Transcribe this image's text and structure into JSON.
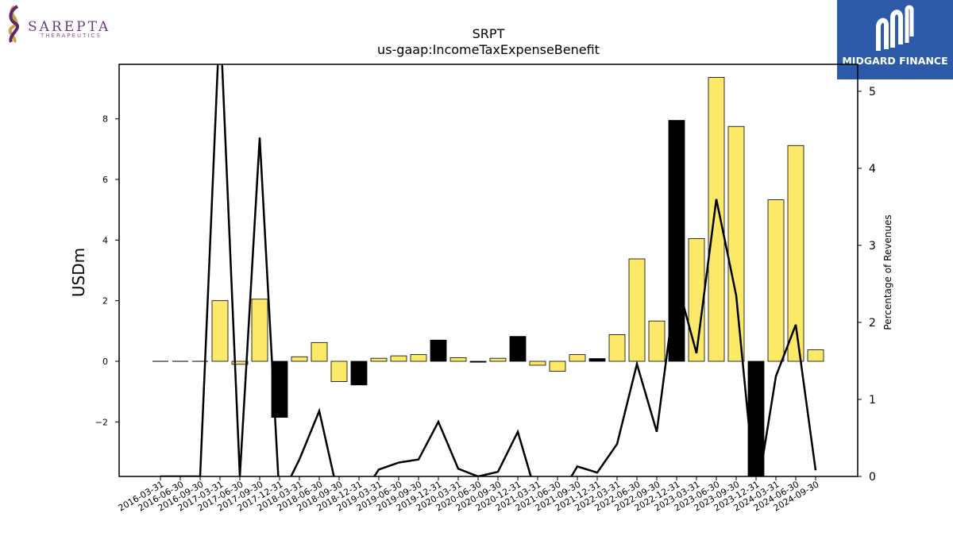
{
  "logos": {
    "left_name": "SAREPTA",
    "left_sub": "THERAPEUTICS",
    "right_name": "MIDGARD FINANCE"
  },
  "colors": {
    "positive_bar": "#fce96a",
    "negative_bar": "#000000",
    "line": "#000000",
    "mf_background": "#2d5aa8"
  },
  "chart_data": {
    "type": "bar",
    "title": "SRPT",
    "subtitle": "us-gaap:IncomeTaxExpenseBenefit",
    "ylabel": "USDm",
    "y2label": "Percentage of Revenues",
    "ylim": [
      -3.8,
      9.8
    ],
    "y2lim": [
      0,
      5.35
    ],
    "yticks": [
      -2,
      0,
      2,
      4,
      6,
      8
    ],
    "y2ticks": [
      0,
      1,
      2,
      3,
      4,
      5
    ],
    "grid": false,
    "categories": [
      "2016-03-31",
      "2016-06-30",
      "2016-09-30",
      "2017-03-31",
      "2017-06-30",
      "2017-09-30",
      "2017-12-31",
      "2018-03-31",
      "2018-06-30",
      "2018-09-30",
      "2018-12-31",
      "2019-03-31",
      "2019-06-30",
      "2019-09-30",
      "2019-12-31",
      "2020-03-31",
      "2020-06-30",
      "2020-09-30",
      "2020-12-31",
      "2021-03-31",
      "2021-06-30",
      "2021-09-30",
      "2021-12-31",
      "2022-03-31",
      "2022-06-30",
      "2022-09-30",
      "2022-12-31",
      "2023-03-31",
      "2023-06-30",
      "2023-09-30",
      "2023-12-31",
      "2024-03-31",
      "2024-06-30",
      "2024-09-30"
    ],
    "series": [
      {
        "type": "bar",
        "axis": "left",
        "values": [
          0,
          0,
          0,
          2.0,
          -0.1,
          2.05,
          -1.85,
          0.15,
          0.62,
          -0.67,
          -0.78,
          0.1,
          0.18,
          0.22,
          0.7,
          0.12,
          -0.03,
          0.1,
          0.82,
          -0.13,
          -0.33,
          0.22,
          0.09,
          0.88,
          3.38,
          1.33,
          7.95,
          4.05,
          9.37,
          7.75,
          -4.2,
          5.33,
          7.12,
          0.38
        ],
        "colors": [
          "y",
          "y",
          "y",
          "y",
          "y",
          "y",
          "k",
          "y",
          "y",
          "y",
          "k",
          "y",
          "y",
          "y",
          "k",
          "y",
          "k",
          "y",
          "k",
          "y",
          "y",
          "y",
          "k",
          "y",
          "y",
          "y",
          "k",
          "y",
          "y",
          "y",
          "k",
          "y",
          "y",
          "y"
        ]
      },
      {
        "type": "line",
        "axis": "right",
        "values": [
          0,
          0,
          0,
          6.0,
          0,
          4.4,
          -0.3,
          0.22,
          0.85,
          -0.3,
          -0.3,
          0.09,
          0.18,
          0.22,
          0.71,
          0.1,
          0.0,
          0.06,
          0.58,
          -0.3,
          -0.3,
          0.13,
          0.05,
          0.42,
          1.46,
          0.58,
          2.55,
          1.6,
          3.6,
          2.35,
          -0.3,
          1.3,
          1.97,
          0.08
        ]
      }
    ]
  }
}
